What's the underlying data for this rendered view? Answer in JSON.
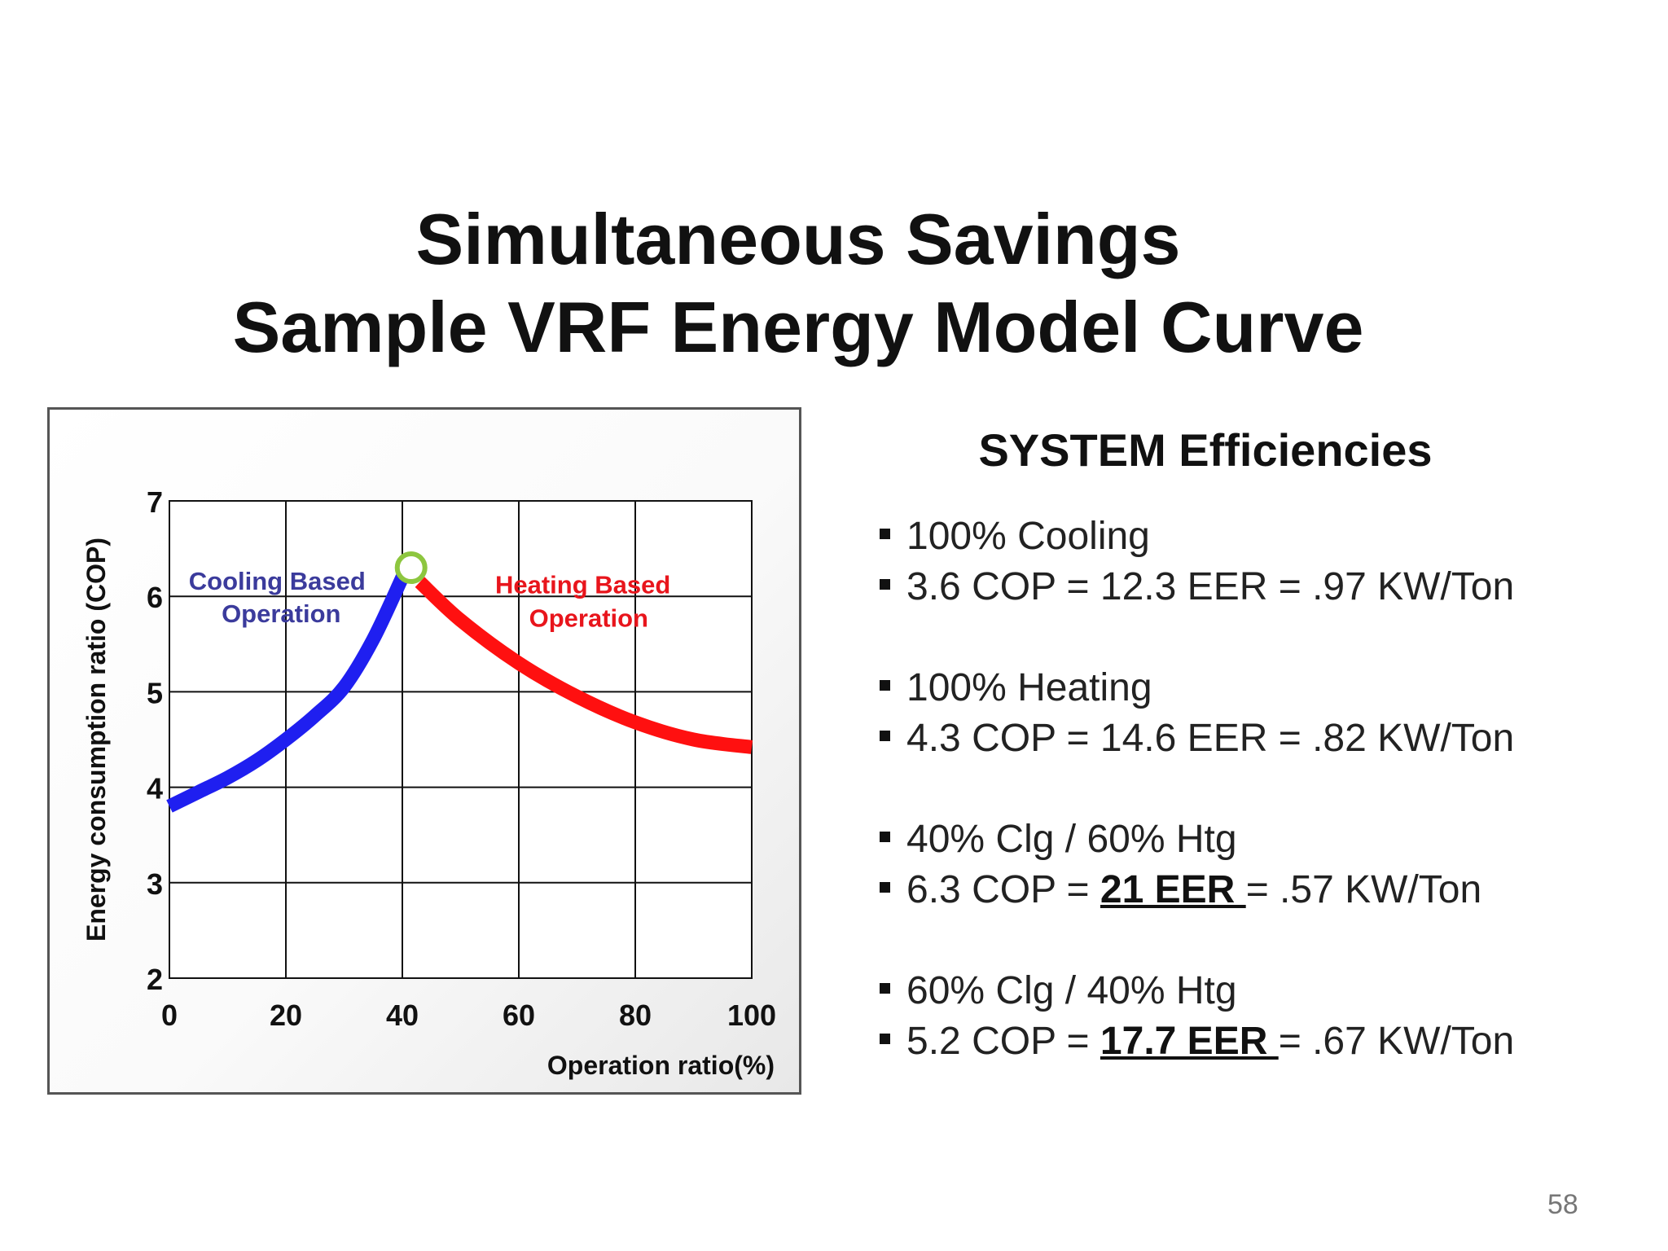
{
  "slide": {
    "title_line1": "Simultaneous Savings",
    "title_line2": "Sample VRF Energy Model Curve",
    "page_number": "58"
  },
  "panel": {
    "title": "SYSTEM Efficiencies",
    "groups": [
      {
        "line1": "100% Cooling",
        "line2": {
          "pre": "3.6 COP = 12.3 EER = .97 KW/Ton",
          "bold": "",
          "post": ""
        }
      },
      {
        "line1": "100% Heating",
        "line2": {
          "pre": "4.3 COP = 14.6 EER = .82 KW/Ton",
          "bold": "",
          "post": ""
        }
      },
      {
        "line1": "40% Clg / 60% Htg",
        "line2": {
          "pre": "6.3 COP = ",
          "bold": "21 EER ",
          "post": "= .57 KW/Ton"
        }
      },
      {
        "line1": "60% Clg / 40% Htg",
        "line2": {
          "pre": "5.2 COP = ",
          "bold": "17.7 EER ",
          "post": "= .67 KW/Ton"
        }
      }
    ]
  },
  "chart_data": {
    "type": "line",
    "xlabel": "Operation ratio(%)",
    "ylabel": "Energy consumption  ratio (COP)",
    "xlim": [
      0,
      100
    ],
    "ylim": [
      2,
      7
    ],
    "x_ticks": [
      0,
      20,
      40,
      60,
      80,
      100
    ],
    "y_ticks": [
      2,
      3,
      4,
      5,
      6,
      7
    ],
    "grid": true,
    "series": [
      {
        "name": "Cooling Based Operation",
        "label_line1": "Cooling Based",
        "label_line2": "Operation",
        "color": "#1f1ff0",
        "x": [
          0,
          5,
          10,
          15,
          20,
          25,
          30,
          35,
          40
        ],
        "y": [
          3.8,
          3.95,
          4.1,
          4.28,
          4.5,
          4.75,
          5.05,
          5.55,
          6.2
        ]
      },
      {
        "name": "Heating Based Operation",
        "label_line1": "Heating Based",
        "label_line2": "Operation",
        "color": "#ff1010",
        "x": [
          43,
          50,
          60,
          70,
          80,
          90,
          100
        ],
        "y": [
          6.15,
          5.75,
          5.3,
          4.95,
          4.68,
          4.5,
          4.42
        ]
      }
    ],
    "peak_marker": {
      "x": 41.5,
      "y": 6.3,
      "color": "#8dc63f"
    },
    "label_color_cooling": "#3b3b9c",
    "label_color_heating": "#e8151c"
  }
}
